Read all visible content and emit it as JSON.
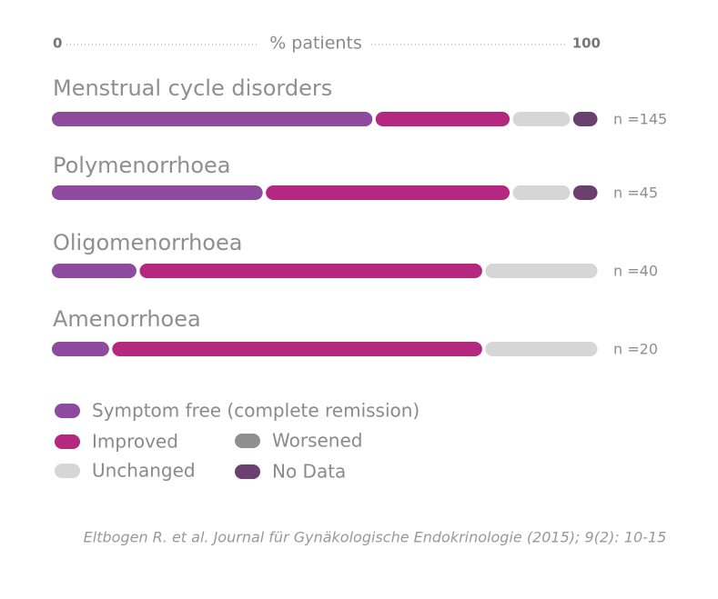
{
  "chart_data": {
    "type": "stacked-bar-horizontal",
    "x_label": "% patients",
    "xlim": [
      0,
      100
    ],
    "xticks": [
      0,
      100
    ],
    "categories": [
      "Menstrual cycle disorders",
      "Polymenorrhoea",
      "Oligomenorrhoea",
      "Amenorrhoea"
    ],
    "n_labels": [
      "n =145",
      "n =45",
      "n =40",
      "n =20"
    ],
    "series": [
      {
        "name": "Symptom free (complete remission)",
        "color": "#8e4a9e",
        "values": [
          59,
          39,
          16,
          11
        ]
      },
      {
        "name": "Improved",
        "color": "#b5287f",
        "values": [
          25,
          45,
          63,
          68
        ]
      },
      {
        "name": "Worsened",
        "color": "#8f8f8f",
        "values": [
          0,
          0,
          0,
          0
        ]
      },
      {
        "name": "Unchanged",
        "color": "#d6d6d6",
        "values": [
          11,
          11,
          21,
          21
        ]
      },
      {
        "name": "No Data",
        "color": "#6b3f6e",
        "values": [
          5,
          5,
          0,
          0
        ]
      }
    ],
    "source": "Eltbogen R. et al. Journal für Gynäkologische Endokrinologie (2015); 9(2): 10-15"
  }
}
